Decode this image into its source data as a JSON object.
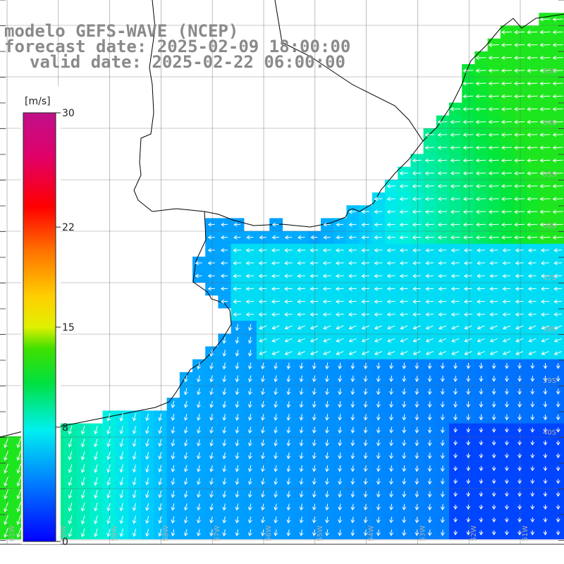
{
  "titles": {
    "line1": "modelo GEFS-WAVE (NCEP)",
    "line2": "forecast date: 2025-02-09 18:00:00",
    "line3": "valid date: 2025-02-22 06:00:00"
  },
  "colorbar": {
    "unit": "[m/s]",
    "tick_labels": [
      "30",
      "22",
      "15",
      "8",
      "0"
    ],
    "tick_values": [
      30,
      22,
      15,
      8,
      0
    ],
    "colors": [
      "#0000ff",
      "#00aaff",
      "#00f0e0",
      "#00e000",
      "#80e000",
      "#ffff00",
      "#ff8000",
      "#ff0000",
      "#e00080",
      "#c00080"
    ]
  },
  "lat_labels": [
    "33S",
    "34S",
    "35S",
    "36S",
    "37S",
    "38S",
    "39S",
    "40S"
  ],
  "lon_labels": [
    "61W",
    "60W",
    "59W",
    "58W",
    "57W",
    "56W",
    "55W",
    "54W",
    "53W",
    "52W",
    "51W"
  ],
  "chart_data": {
    "type": "heatmap",
    "variable": "wind speed with direction arrows",
    "unit": "m/s",
    "range": [
      0,
      30
    ],
    "regions": [
      {
        "region": "northeast coast",
        "speed": 10,
        "direction": "from east"
      },
      {
        "region": "central",
        "speed": 6,
        "direction": "from east"
      },
      {
        "region": "southwest",
        "speed": 11,
        "direction": "from north"
      },
      {
        "region": "southeast",
        "speed": 3,
        "direction": "from north"
      }
    ]
  }
}
